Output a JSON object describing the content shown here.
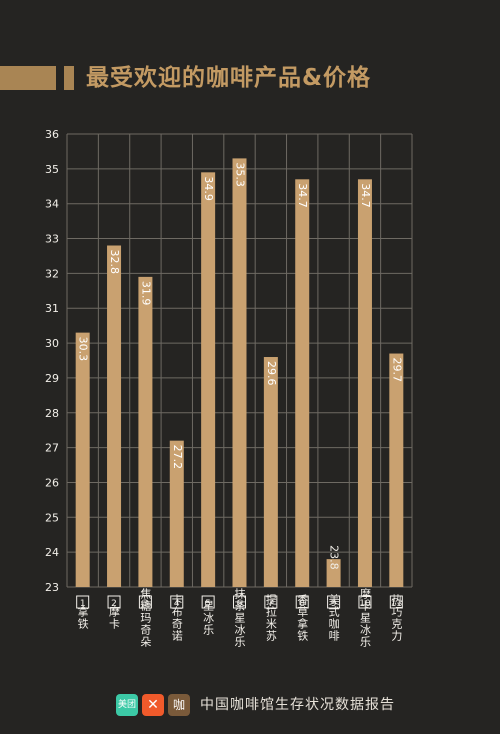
{
  "title": "最受欢迎的咖啡产品&价格",
  "footer": {
    "logos": [
      "美团",
      "饿了么",
      "咖"
    ],
    "text": "中国咖啡馆生存状况数据报告"
  },
  "colors": {
    "background": "#252422",
    "bar": "#c9a170",
    "accent": "#a98554",
    "grid": "#6e6a63",
    "text": "#f2efe9"
  },
  "chart_data": {
    "type": "bar",
    "title": "",
    "xlabel": "",
    "ylabel": "",
    "ylim": [
      23,
      36
    ],
    "yticks": [
      23,
      24,
      25,
      26,
      27,
      28,
      29,
      30,
      31,
      32,
      33,
      34,
      35,
      36
    ],
    "grid": true,
    "categories": [
      "拿铁",
      "摩卡",
      "焦糖玛奇朵",
      "卡布奇诺",
      "星冰乐",
      "抹茶星冰乐",
      "提拉米苏",
      "香草拿铁",
      "美式咖啡",
      "摩卡星冰乐",
      "热巧克力"
    ],
    "index_labels": [
      "1",
      "2",
      "3",
      "4",
      "5",
      "6",
      "7",
      "8",
      "9",
      "10",
      "11"
    ],
    "values": [
      30.3,
      32.8,
      31.9,
      27.2,
      34.9,
      35.3,
      29.6,
      34.7,
      23.8,
      34.7,
      29.7
    ]
  }
}
